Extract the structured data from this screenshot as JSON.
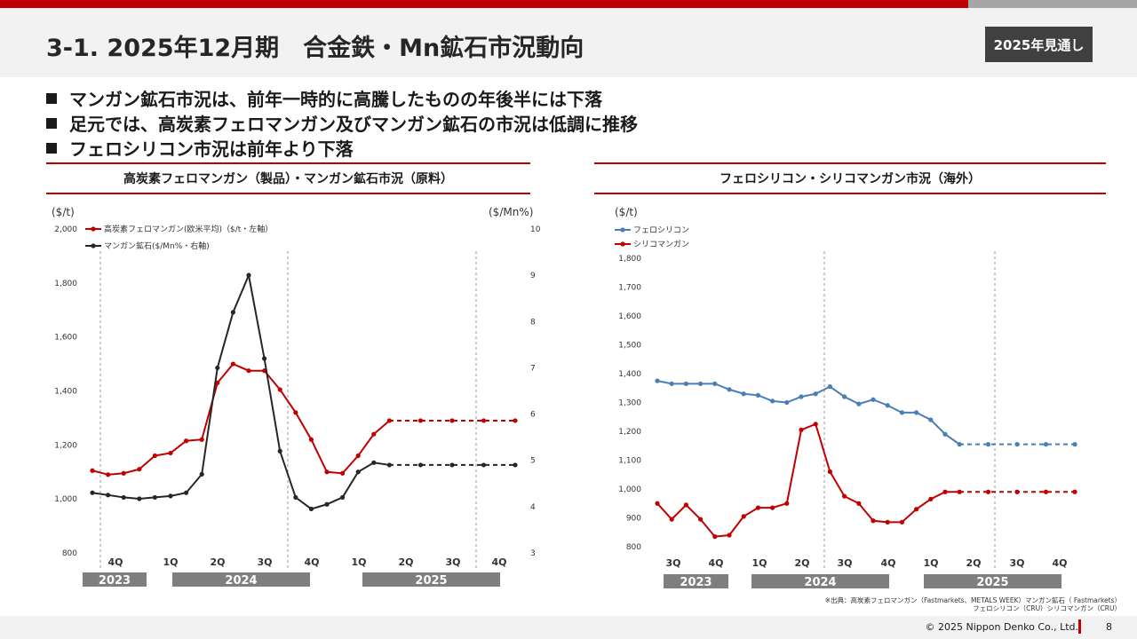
{
  "header": {
    "title": "3-1. 2025年12月期　合金鉄・Mn鉱石市況動向",
    "badge": "2025年見通し"
  },
  "bullets": [
    "マンガン鉱石市況は、前年一時的に高騰したものの年後半には下落",
    "足元では、高炭素フェロマンガン及びマンガン鉱石の市況は低調に推移",
    "フェロシリコン市況は前年より下落"
  ],
  "colors": {
    "red": "#c00000",
    "dark": "#262626",
    "blue": "#4a7fb5"
  },
  "chart_data": [
    {
      "type": "line",
      "title": "高炭素フェロマンガン（製品）・マンガン鉱石市況（原料）",
      "left_unit": "($/t)",
      "right_unit": "($/Mn%)",
      "ylim": [
        800,
        2000
      ],
      "y2lim": [
        3,
        10
      ],
      "yticks": [
        "800",
        "1,000",
        "1,200",
        "1,400",
        "1,600",
        "1,800",
        "2,000"
      ],
      "y2ticks": [
        "3",
        "4",
        "5",
        "6",
        "7",
        "8",
        "9",
        "10"
      ],
      "quarter_labels": [
        "4Q",
        "1Q",
        "2Q",
        "3Q",
        "4Q",
        "1Q",
        "2Q",
        "3Q",
        "4Q"
      ],
      "year_labels": [
        "2023",
        "2024",
        "2025"
      ],
      "legend_position": "top-left",
      "series": [
        {
          "name": "高炭素フェロマンガン(欧米平均)（$/t・左軸）",
          "axis": "left",
          "color": "#c00000",
          "values": [
            1105,
            1090,
            1095,
            1110,
            1160,
            1170,
            1215,
            1220,
            1430,
            1500,
            1475,
            1475,
            1405,
            1320,
            1220,
            1100,
            1095,
            1160,
            1240,
            1290
          ],
          "forecast": [
            1290,
            1290,
            1290,
            1290,
            1290
          ]
        },
        {
          "name": "マンガン鉱石($/Mn%・右軸)",
          "axis": "right",
          "color": "#262626",
          "values": [
            4.3,
            4.25,
            4.2,
            4.17,
            4.2,
            4.23,
            4.3,
            4.7,
            7.0,
            8.2,
            9.0,
            7.2,
            5.2,
            4.2,
            3.95,
            4.05,
            4.2,
            4.75,
            4.95,
            4.9
          ],
          "forecast": [
            4.9,
            4.9,
            4.9,
            4.9,
            4.9
          ]
        }
      ]
    },
    {
      "type": "line",
      "title": "フェロシリコン・シリコマンガン市況（海外）",
      "left_unit": "($/t)",
      "ylim": [
        800,
        1800
      ],
      "yticks": [
        "800",
        "900",
        "1,000",
        "1,100",
        "1,200",
        "1,300",
        "1,400",
        "1,500",
        "1,600",
        "1,700",
        "1,800"
      ],
      "quarter_labels": [
        "3Q",
        "4Q",
        "1Q",
        "2Q",
        "3Q",
        "4Q",
        "1Q",
        "2Q",
        "3Q",
        "4Q"
      ],
      "year_labels": [
        "2023",
        "2024",
        "2025"
      ],
      "legend_position": "top-left",
      "series": [
        {
          "name": "フェロシリコン",
          "color": "#4a7fb5",
          "values": [
            1375,
            1365,
            1365,
            1365,
            1365,
            1345,
            1330,
            1325,
            1305,
            1300,
            1320,
            1330,
            1355,
            1320,
            1295,
            1310,
            1290,
            1265,
            1265,
            1240,
            1190,
            1155
          ],
          "forecast": [
            1155,
            1155,
            1155,
            1155,
            1155
          ]
        },
        {
          "name": "シリコマンガン",
          "color": "#c00000",
          "values": [
            950,
            895,
            945,
            895,
            835,
            840,
            905,
            935,
            935,
            950,
            1205,
            1225,
            1060,
            975,
            950,
            890,
            885,
            885,
            930,
            965,
            990,
            990
          ],
          "forecast": [
            990,
            990,
            990,
            990,
            990
          ]
        }
      ]
    }
  ],
  "source": {
    "line1": "※出典：高炭素フェロマンガン（Fastmarkets、METALS WEEK）マンガン鉱石（ Fastmarkets）",
    "line2": "フェロシリコン（CRU）シリコマンガン（CRU）"
  },
  "footer": {
    "copyright": "© 2025 Nippon Denko Co., Ltd.",
    "page": "8"
  }
}
